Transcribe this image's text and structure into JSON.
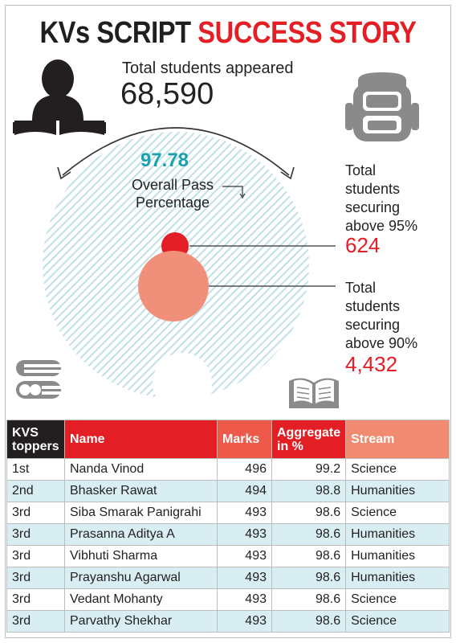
{
  "headline": {
    "part1": "KVs SCRIPT",
    "part2": "SUCCESS STORY"
  },
  "appeared": {
    "label": "Total students appeared",
    "value": "68,590"
  },
  "pass": {
    "value": "97.78",
    "label_line1": "Overall Pass",
    "label_line2": "Percentage"
  },
  "above95": {
    "lines": [
      "Total",
      "students",
      "securing",
      "above 95%"
    ],
    "value": "624"
  },
  "above90": {
    "lines": [
      "Total",
      "students",
      "securing",
      "above 90%"
    ],
    "value": "4,432"
  },
  "colors": {
    "red": "#e31e24",
    "salmon": "#f0907a",
    "teal": "#1aa0b0",
    "hatch": "#bfe0e6"
  },
  "icons": [
    "reader-icon",
    "backpack-icon",
    "books-stack-icon",
    "open-book-icon"
  ],
  "chart_data": {
    "type": "table",
    "columns": [
      "KVS toppers",
      "Name",
      "Marks",
      "Aggregate in %",
      "Stream"
    ],
    "rows": [
      [
        "1st",
        "Nanda Vinod",
        "496",
        "99.2",
        "Science"
      ],
      [
        "2nd",
        "Bhasker Rawat",
        "494",
        "98.8",
        "Humanities"
      ],
      [
        "3rd",
        "Siba Smarak Panigrahi",
        "493",
        "98.6",
        "Science"
      ],
      [
        "3rd",
        "Prasanna Aditya A",
        "493",
        "98.6",
        "Humanities"
      ],
      [
        "3rd",
        "Vibhuti Sharma",
        "493",
        "98.6",
        "Humanities"
      ],
      [
        "3rd",
        "Prayanshu Agarwal",
        "493",
        "98.6",
        "Humanities"
      ],
      [
        "3rd",
        "Vedant Mohanty",
        "493",
        "98.6",
        "Science"
      ],
      [
        "3rd",
        "Parvathy Shekhar",
        "493",
        "98.6",
        "Science"
      ]
    ],
    "bubbles": [
      {
        "label": "Total students appeared",
        "value": 68590
      },
      {
        "label": "Total students securing above 95%",
        "value": 624
      },
      {
        "label": "Total students securing above 90%",
        "value": 4432
      }
    ],
    "pass_percentage": 97.78
  }
}
